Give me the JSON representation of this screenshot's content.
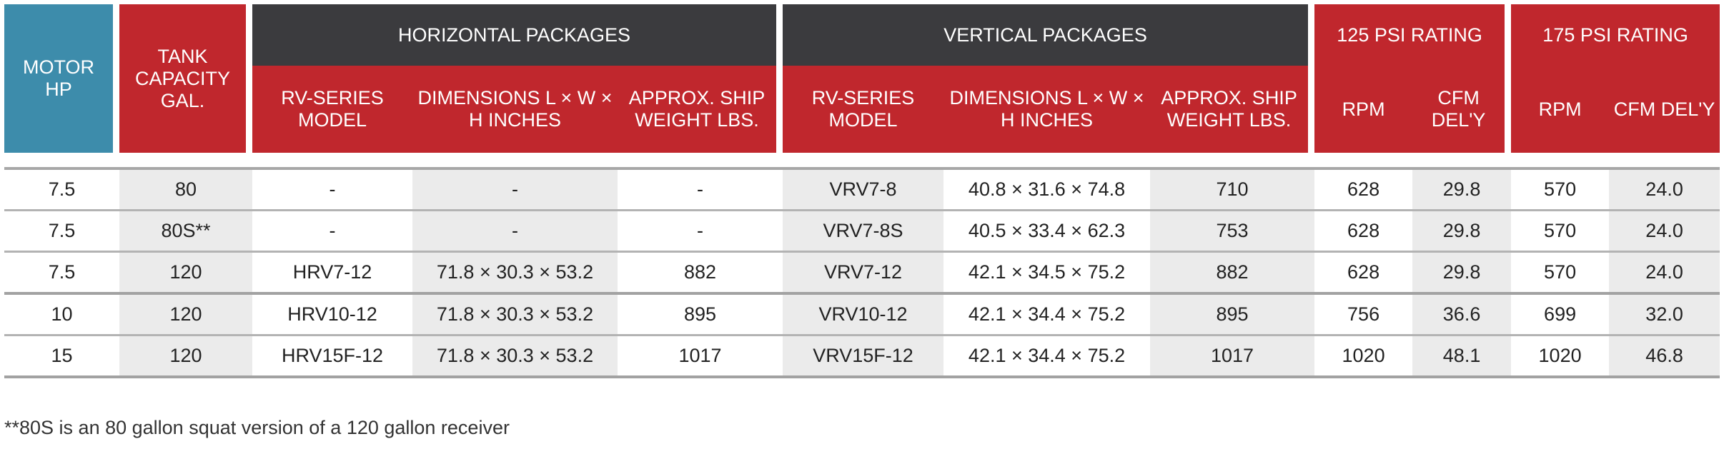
{
  "headers": {
    "motor_hp": "MOTOR HP",
    "tank_capacity": "TANK CAPACITY GAL.",
    "horizontal_packages": "HORIZONTAL PACKAGES",
    "vertical_packages": "VERTICAL PACKAGES",
    "rating_125": "125 PSI RATING",
    "rating_175": "175 PSI RATING",
    "rv_series_model": "RV-SERIES MODEL",
    "dimensions": "DIMENSIONS L × W × H INCHES",
    "ship_weight": "APPROX. SHIP WEIGHT LBS.",
    "rpm": "RPM",
    "cfm": "CFM DEL'Y"
  },
  "rows": [
    [
      "7.5",
      "80",
      "-",
      "-",
      "-",
      "VRV7-8",
      "40.8 × 31.6 × 74.8",
      "710",
      "628",
      "29.8",
      "570",
      "24.0"
    ],
    [
      "7.5",
      "80S**",
      "-",
      "-",
      "-",
      "VRV7-8S",
      "40.5 × 33.4 × 62.3",
      "753",
      "628",
      "29.8",
      "570",
      "24.0"
    ],
    [
      "7.5",
      "120",
      "HRV7-12",
      "71.8 × 30.3 × 53.2",
      "882",
      "VRV7-12",
      "42.1 × 34.5 × 75.2",
      "882",
      "628",
      "29.8",
      "570",
      "24.0"
    ],
    [
      "10",
      "120",
      "HRV10-12",
      "71.8 × 30.3 × 53.2",
      "895",
      "VRV10-12",
      "42.1 × 34.4 × 75.2",
      "895",
      "756",
      "36.6",
      "699",
      "32.0"
    ],
    [
      "15",
      "120",
      "HRV15F-12",
      "71.8 × 30.3 × 53.2",
      "1017",
      "VRV15F-12",
      "42.1 × 34.4 × 75.2",
      "1017",
      "1020",
      "48.1",
      "1020",
      "46.8"
    ]
  ],
  "footnote": "**80S is an 80 gallon squat version of a 120 gallon receiver",
  "colors": {
    "blue_header": "#3d8cab",
    "red_header": "#c0272d",
    "dark_header": "#3b3b3e",
    "hp_text": "#3f8fb4",
    "shade": "#ebebeb"
  }
}
